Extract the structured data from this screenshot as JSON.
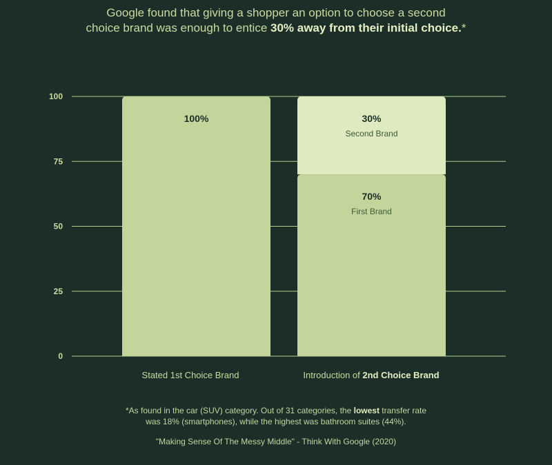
{
  "headline": {
    "line1": "Google found that giving a shopper an option to choose a second",
    "line2_prefix": "choice brand was enough to entice ",
    "line2_bold": "30% away from their initial choice.",
    "line2_suffix": "*"
  },
  "chart_data": {
    "type": "bar",
    "stacked": true,
    "ylim": [
      0,
      100
    ],
    "yticks": [
      "0",
      "25",
      "50",
      "75",
      "100"
    ],
    "grid": true,
    "categories": [
      {
        "prefix": "Stated 1st Choice Brand",
        "bold": ""
      },
      {
        "prefix": "Introduction of ",
        "bold": "2nd Choice Brand"
      }
    ],
    "series": [
      {
        "segments": [
          {
            "value": 100,
            "label": "100%",
            "sublabel": "",
            "color": "#c4d59c"
          },
          {
            "value": 70,
            "label": "70%",
            "sublabel": "First Brand",
            "color": "#c4d59c"
          }
        ]
      },
      {
        "segments": [
          {
            "value": 0,
            "label": "",
            "sublabel": "",
            "color": "#dfeac0"
          },
          {
            "value": 30,
            "label": "30%",
            "sublabel": "Second Brand",
            "color": "#dfeac0"
          }
        ]
      }
    ]
  },
  "footnote": {
    "line1_prefix": "*As found in the car (SUV) category. Out of 31 categories, the ",
    "line1_bold": "lowest",
    "line1_suffix": " transfer rate",
    "line2": "was 18% (smartphones), while the highest was bathroom suites (44%)."
  },
  "source": "\"Making Sense Of The Messy Middle\" - Think With Google (2020)",
  "colors": {
    "background": "#1b2e27",
    "bar_primary": "#c4d59c",
    "bar_secondary": "#dfeac0",
    "label_dark": "#1b2e27",
    "text": "#c9dba0"
  }
}
